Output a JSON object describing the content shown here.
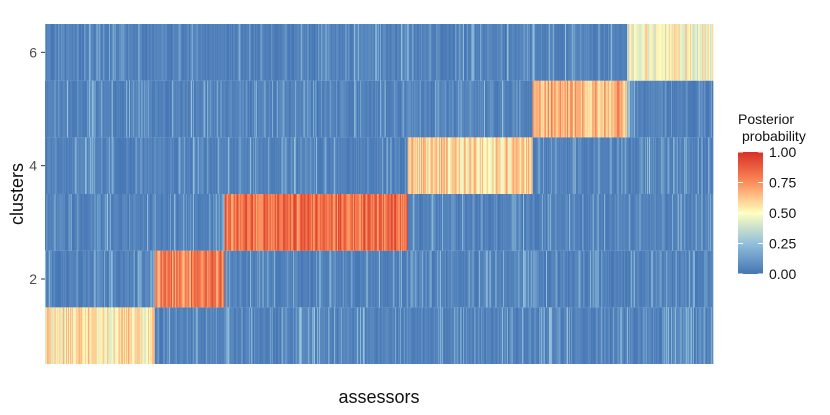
{
  "chart_data": {
    "type": "heatmap",
    "title": "",
    "xlabel": "assessors",
    "ylabel": "clusters",
    "y_categories": [
      1,
      2,
      3,
      4,
      5,
      6
    ],
    "y_tick_labels": [
      "2",
      "4",
      "6"
    ],
    "y_tick_values": [
      2,
      4,
      6
    ],
    "n_assessors": 700,
    "legend": {
      "title_line1": "Posterior",
      "title_line2": "probability",
      "ticks": [
        "0.00",
        "0.25",
        "0.50",
        "0.75",
        "1.00"
      ],
      "tick_values": [
        0.0,
        0.25,
        0.5,
        0.75,
        1.0
      ],
      "colors": [
        "#4575b4",
        "#91bfdb",
        "#ffffbf",
        "#fc8d59",
        "#d73027"
      ],
      "placement": "right"
    },
    "assessor_groups": [
      {
        "from": 0,
        "to": 115,
        "dominant_cluster": 1,
        "level": 0.55
      },
      {
        "from": 115,
        "to": 188,
        "dominant_cluster": 2,
        "level": 0.78
      },
      {
        "from": 188,
        "to": 380,
        "dominant_cluster": 3,
        "level": 0.83
      },
      {
        "from": 380,
        "to": 511,
        "dominant_cluster": 4,
        "level": 0.58
      },
      {
        "from": 511,
        "to": 610,
        "dominant_cluster": 5,
        "level": 0.68
      },
      {
        "from": 610,
        "to": 700,
        "dominant_cluster": 6,
        "level": 0.48
      }
    ],
    "grid": false
  }
}
